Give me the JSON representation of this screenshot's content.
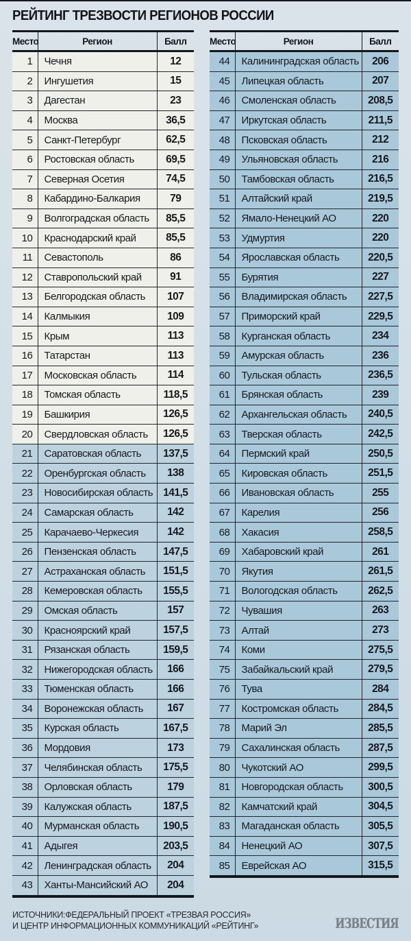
{
  "chart_data": {
    "type": "table",
    "title": "РЕЙТИНГ ТРЕЗВОСТИ РЕГИОНОВ РОССИИ",
    "columns": [
      "Место",
      "Регион",
      "Балл"
    ],
    "layout": {
      "two_column_split": true,
      "left_rows": "1-43",
      "right_rows": "44-85",
      "top20_highlighted_light": true
    },
    "tables": [
      {
        "name": "ranks-1-43",
        "light_rows": 20,
        "rows": [
          [
            "1",
            "Чечня",
            "12"
          ],
          [
            "2",
            "Ингушетия",
            "15"
          ],
          [
            "3",
            "Дагестан",
            "23"
          ],
          [
            "4",
            "Москва",
            "36,5"
          ],
          [
            "5",
            "Санкт-Петербург",
            "62,5"
          ],
          [
            "6",
            "Ростовская область",
            "69,5"
          ],
          [
            "7",
            "Северная Осетия",
            "74,5"
          ],
          [
            "8",
            "Кабардино-Балкария",
            "79"
          ],
          [
            "9",
            "Волгоградская область",
            "85,5"
          ],
          [
            "10",
            "Краснодарский край",
            "85,5"
          ],
          [
            "11",
            "Севастополь",
            "86"
          ],
          [
            "12",
            "Ставропольский край",
            "91"
          ],
          [
            "13",
            "Белгородская область",
            "107"
          ],
          [
            "14",
            "Калмыкия",
            "109"
          ],
          [
            "15",
            "Крым",
            "113"
          ],
          [
            "16",
            "Татарстан",
            "113"
          ],
          [
            "17",
            "Московская область",
            "114"
          ],
          [
            "18",
            "Томская область",
            "118,5"
          ],
          [
            "19",
            "Башкирия",
            "126,5"
          ],
          [
            "20",
            "Свердловская область",
            "126,5"
          ],
          [
            "21",
            "Саратовская область",
            "137,5"
          ],
          [
            "22",
            "Оренбургская область",
            "138"
          ],
          [
            "23",
            "Новосибирская область",
            "141,5"
          ],
          [
            "24",
            "Самарская область",
            "142"
          ],
          [
            "25",
            "Карачаево-Черкесия",
            "142"
          ],
          [
            "26",
            "Пензенская область",
            "147,5"
          ],
          [
            "27",
            "Астраханская область",
            "151,5"
          ],
          [
            "28",
            "Кемеровская область",
            "155,5"
          ],
          [
            "29",
            "Омская область",
            "157"
          ],
          [
            "30",
            "Красноярский край",
            "157,5"
          ],
          [
            "31",
            "Рязанская область",
            "159,5"
          ],
          [
            "32",
            "Нижегородская область",
            "166"
          ],
          [
            "33",
            "Тюменская область",
            "166"
          ],
          [
            "34",
            "Воронежская область",
            "167"
          ],
          [
            "35",
            "Курская область",
            "167,5"
          ],
          [
            "36",
            "Мордовия",
            "173"
          ],
          [
            "37",
            "Челябинская область",
            "175,5"
          ],
          [
            "38",
            "Орловская область",
            "179"
          ],
          [
            "39",
            "Калужская область",
            "187,5"
          ],
          [
            "40",
            "Мурманская область",
            "190,5"
          ],
          [
            "41",
            "Адыгея",
            "203,5"
          ],
          [
            "42",
            "Ленинградская область",
            "204"
          ],
          [
            "43",
            "Ханты-Мансийский АО",
            "204"
          ]
        ]
      },
      {
        "name": "ranks-44-85",
        "light_rows": 0,
        "rows": [
          [
            "44",
            "Калининградская область",
            "206"
          ],
          [
            "45",
            "Липецкая область",
            "207"
          ],
          [
            "46",
            "Смоленская область",
            "208,5"
          ],
          [
            "47",
            "Иркутская область",
            "211,5"
          ],
          [
            "48",
            "Псковская область",
            "212"
          ],
          [
            "49",
            "Ульяновская область",
            "216"
          ],
          [
            "50",
            "Тамбовская область",
            "216,5"
          ],
          [
            "51",
            "Алтайский край",
            "219,5"
          ],
          [
            "52",
            "Ямало-Ненецкий АО",
            "220"
          ],
          [
            "53",
            "Удмуртия",
            "220"
          ],
          [
            "54",
            "Ярославская область",
            "220,5"
          ],
          [
            "55",
            "Бурятия",
            "227"
          ],
          [
            "56",
            "Владимирская область",
            "227,5"
          ],
          [
            "57",
            "Приморский край",
            "229,5"
          ],
          [
            "58",
            "Курганская область",
            "234"
          ],
          [
            "59",
            "Амурская область",
            "236"
          ],
          [
            "60",
            "Тульская область",
            "236,5"
          ],
          [
            "61",
            "Брянская область",
            "239"
          ],
          [
            "62",
            "Архангельская область",
            "240,5"
          ],
          [
            "63",
            "Тверская область",
            "242,5"
          ],
          [
            "64",
            "Пермский край",
            "250,5"
          ],
          [
            "65",
            "Кировская область",
            "251,5"
          ],
          [
            "66",
            "Ивановская область",
            "255"
          ],
          [
            "67",
            "Карелия",
            "256"
          ],
          [
            "68",
            "Хакасия",
            "258,5"
          ],
          [
            "69",
            "Хабаровский край",
            "261"
          ],
          [
            "70",
            "Якутия",
            "261,5"
          ],
          [
            "71",
            "Вологодская область",
            "262,5"
          ],
          [
            "72",
            "Чувашия",
            "263"
          ],
          [
            "73",
            "Алтай",
            "273"
          ],
          [
            "74",
            "Коми",
            "275,5"
          ],
          [
            "75",
            "Забайкальский край",
            "279,5"
          ],
          [
            "76",
            "Тува",
            "284"
          ],
          [
            "77",
            "Костромская область",
            "284,5"
          ],
          [
            "78",
            "Марий Эл",
            "285,5"
          ],
          [
            "79",
            "Сахалинская область",
            "287,5"
          ],
          [
            "80",
            "Чукотский АО",
            "299,5"
          ],
          [
            "81",
            "Новгородская область",
            "300,5"
          ],
          [
            "82",
            "Камчатский край",
            "304,5"
          ],
          [
            "83",
            "Магаданская область",
            "305,5"
          ],
          [
            "84",
            "Ненецкий АО",
            "307,5"
          ],
          [
            "85",
            "Еврейская АО",
            "315,5"
          ]
        ]
      }
    ]
  },
  "footer": {
    "source_line1": "ИСТОЧНИКИ:ФЕДЕРАЛЬНЫЙ ПРОЕКТ «ТРЕЗВАЯ РОССИЯ»",
    "source_line2": "И ЦЕНТР ИНФОРМАЦИОННЫХ КОММУНИКАЦИЙ «РЕЙТИНГ»",
    "logo": "ИЗВЕСТИЯ"
  },
  "colors": {
    "page_bg": "#d3dfe7",
    "row_light": "#eef0e9",
    "row_blue_left": "#bdd2df",
    "row_blue_right": "#a9c9db",
    "rule": "#15181a",
    "text": "#17191c",
    "logo": "#7b8287"
  }
}
